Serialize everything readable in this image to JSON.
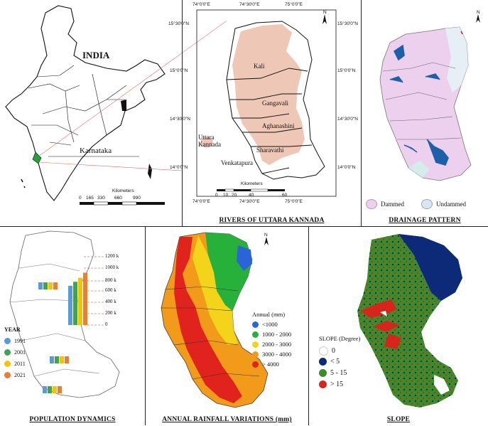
{
  "india_panel": {
    "country_label": "INDIA",
    "state_label": "Karnataka",
    "scale_unit": "Kilometers",
    "scale_ticks": [
      "0",
      "165",
      "330",
      "660",
      "990"
    ]
  },
  "rivers_panel": {
    "caption": "RIVERS OF UTTARA KANNADA",
    "lon_labels": [
      "74°0'0\"E",
      "74°30'0\"E",
      "75°0'0\"E"
    ],
    "lat_labels": [
      "15°30'0\"N",
      "15°0'0\"N",
      "14°30'0\"N",
      "14°0'0\"N"
    ],
    "rivers": [
      "Kali",
      "Gangavali",
      "Aghanashini",
      "Sharavathi",
      "Venkatapura"
    ],
    "legend_label": "Uttara Kannada",
    "scale_unit": "Kilometers",
    "scale_ticks": [
      "0",
      "10",
      "20",
      "40",
      "60"
    ],
    "north": "N",
    "colors": {
      "district": "#efc7b7"
    }
  },
  "drainage_panel": {
    "caption": "DRAINAGE PATTERN",
    "legend": [
      {
        "label": "Dammed",
        "color": "#edd0ee"
      },
      {
        "label": "Undammed",
        "color": "#d8e6f2"
      }
    ],
    "north": "N"
  },
  "population_panel": {
    "caption": "POPULATION DYNAMICS",
    "scale_labels": [
      "1200 k",
      "1000 k",
      "800 k",
      "600 k",
      "400 k",
      "200 k",
      "0"
    ],
    "year_title": "YEAR",
    "years": [
      {
        "label": "1991",
        "color": "#5b9bd5"
      },
      {
        "label": "2001",
        "color": "#3aa655"
      },
      {
        "label": "2011",
        "color": "#f2c500"
      },
      {
        "label": "2021",
        "color": "#ed7d31"
      }
    ],
    "chart_data": {
      "type": "bar",
      "series": [
        {
          "name": "1991",
          "values": [
            240,
            690,
            170,
            110
          ]
        },
        {
          "name": "2001",
          "values": [
            270,
            760,
            190,
            120
          ]
        },
        {
          "name": "2011",
          "values": [
            290,
            830,
            210,
            130
          ]
        },
        {
          "name": "2021",
          "values": [
            310,
            920,
            225,
            140
          ]
        }
      ],
      "ylim": [
        0,
        1200
      ]
    }
  },
  "rainfall_panel": {
    "caption": "ANNUAL RAINFALL VARIATIONS (mm)",
    "legend_title": "Annual (mm)",
    "classes": [
      {
        "label": "<1000",
        "color": "#2b63d9"
      },
      {
        "label": "1000 - 2000",
        "color": "#27b13a"
      },
      {
        "label": "2000 - 3000",
        "color": "#f4d41b"
      },
      {
        "label": "3000 - 4000",
        "color": "#f29a1a"
      },
      {
        "label": "> 4000",
        "color": "#e0231d"
      }
    ],
    "north": "N"
  },
  "slope_panel": {
    "caption": "SLOPE",
    "legend_title": "SLOPE (Degree)",
    "classes": [
      {
        "label": "0",
        "color": "#ffffff"
      },
      {
        "label": "< 5",
        "color": "#0c2a78"
      },
      {
        "label": "5 - 15",
        "color": "#3c8c2a"
      },
      {
        "label": "> 15",
        "color": "#d8251c"
      }
    ]
  }
}
